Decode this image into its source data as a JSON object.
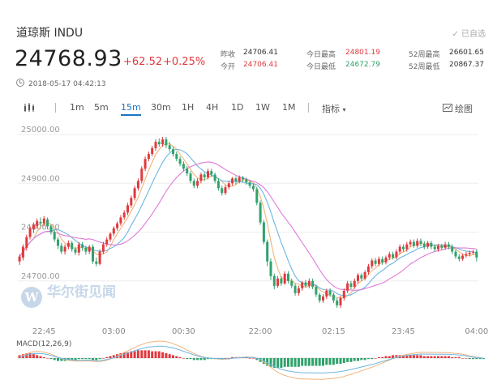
{
  "header": {
    "title": "道琼斯  INDU",
    "subscribed": "✓ 已自选",
    "price": "24768.93",
    "change": "+62.52",
    "change_pct": "+0.25%",
    "timestamp": "2018-05-17 04:42:13"
  },
  "quote": {
    "prev_close_label": "昨收",
    "prev_close": "24706.41",
    "open_label": "今开",
    "open": "24706.41",
    "high_label": "今日最高",
    "high": "24801.19",
    "low_label": "今日最低",
    "low": "24672.79",
    "w52_high_label": "52周最高",
    "w52_high": "26601.65",
    "w52_low_label": "52周最低",
    "w52_low": "20867.37"
  },
  "toolbar": {
    "intervals": [
      "1m",
      "5m",
      "15m",
      "30m",
      "1H",
      "4H",
      "1D",
      "1W",
      "1M"
    ],
    "active": "15m",
    "indicators_label": "指标",
    "draw_label": "绘图"
  },
  "watermark": {
    "logo_glyph": "W",
    "text": "华尔街见闻"
  },
  "macd": {
    "label": "MACD(12,26,9)"
  },
  "colors": {
    "up": "#e0393e",
    "down": "#2fa36b",
    "ma_short": "#f2b37a",
    "ma_mid": "#6cb6e3",
    "ma_long": "#e07ad8"
  },
  "chart_data": {
    "type": "candlestick",
    "ylim": [
      24625,
      25010
    ],
    "y_ticks": [
      25000,
      24900,
      24800,
      24700
    ],
    "y_tick_labels": [
      "25000.00",
      "24900.00",
      "24800.00",
      "24700.00"
    ],
    "x_labels": [
      "22:45",
      "03:00",
      "00:30",
      "22:00",
      "02:15",
      "23:45",
      "04:00"
    ],
    "x_label_index": [
      7,
      27,
      47,
      69,
      90,
      110,
      131
    ],
    "candles": [
      [
        24740,
        24750,
        24733,
        24755
      ],
      [
        24748,
        24770,
        24742,
        24775
      ],
      [
        24768,
        24790,
        24762,
        24795
      ],
      [
        24790,
        24808,
        24785,
        24812
      ],
      [
        24806,
        24815,
        24798,
        24820
      ],
      [
        24813,
        24823,
        24808,
        24828
      ],
      [
        24821,
        24818,
        24812,
        24830
      ],
      [
        24818,
        24828,
        24812,
        24833
      ],
      [
        24826,
        24812,
        24806,
        24830
      ],
      [
        24812,
        24800,
        24795,
        24815
      ],
      [
        24800,
        24785,
        24780,
        24805
      ],
      [
        24785,
        24772,
        24765,
        24790
      ],
      [
        24772,
        24760,
        24755,
        24778
      ],
      [
        24760,
        24770,
        24754,
        24775
      ],
      [
        24770,
        24778,
        24765,
        24783
      ],
      [
        24778,
        24765,
        24760,
        24782
      ],
      [
        24765,
        24758,
        24753,
        24770
      ],
      [
        24758,
        24775,
        24752,
        24780
      ],
      [
        24775,
        24768,
        24762,
        24780
      ],
      [
        24768,
        24760,
        24754,
        24772
      ],
      [
        24760,
        24770,
        24755,
        24774
      ],
      [
        24770,
        24740,
        24735,
        24775
      ],
      [
        24740,
        24735,
        24730,
        24748
      ],
      [
        24735,
        24760,
        24732,
        24765
      ],
      [
        24760,
        24775,
        24755,
        24780
      ],
      [
        24775,
        24785,
        24770,
        24790
      ],
      [
        24785,
        24797,
        24780,
        24800
      ],
      [
        24797,
        24808,
        24792,
        24812
      ],
      [
        24808,
        24818,
        24803,
        24822
      ],
      [
        24818,
        24830,
        24813,
        24835
      ],
      [
        24830,
        24840,
        24825,
        24845
      ],
      [
        24840,
        24855,
        24835,
        24860
      ],
      [
        24855,
        24870,
        24850,
        24875
      ],
      [
        24870,
        24890,
        24865,
        24895
      ],
      [
        24890,
        24905,
        24885,
        24910
      ],
      [
        24905,
        24930,
        24900,
        24935
      ],
      [
        24930,
        24950,
        24925,
        24955
      ],
      [
        24950,
        24960,
        24945,
        24965
      ],
      [
        24960,
        24972,
        24955,
        24977
      ],
      [
        24972,
        24985,
        24967,
        24990
      ],
      [
        24985,
        24980,
        24975,
        24992
      ],
      [
        24980,
        24990,
        24975,
        24995
      ],
      [
        24990,
        24978,
        24972,
        24995
      ],
      [
        24978,
        24970,
        24965,
        24985
      ],
      [
        24970,
        24960,
        24955,
        24975
      ],
      [
        24960,
        24950,
        24945,
        24965
      ],
      [
        24950,
        24940,
        24935,
        24955
      ],
      [
        24940,
        24930,
        24925,
        24945
      ],
      [
        24930,
        24920,
        24915,
        24935
      ],
      [
        24920,
        24905,
        24900,
        24925
      ],
      [
        24905,
        24895,
        24890,
        24910
      ],
      [
        24895,
        24905,
        24890,
        24910
      ],
      [
        24905,
        24918,
        24900,
        24922
      ],
      [
        24918,
        24912,
        24905,
        24922
      ],
      [
        24912,
        24925,
        24908,
        24930
      ],
      [
        24925,
        24918,
        24913,
        24930
      ],
      [
        24918,
        24905,
        24900,
        24922
      ],
      [
        24905,
        24890,
        24885,
        24910
      ],
      [
        24890,
        24880,
        24875,
        24895
      ],
      [
        24880,
        24892,
        24876,
        24897
      ],
      [
        24892,
        24900,
        24888,
        24905
      ],
      [
        24900,
        24910,
        24895,
        24913
      ],
      [
        24910,
        24904,
        24898,
        24914
      ],
      [
        24904,
        24912,
        24900,
        24916
      ],
      [
        24912,
        24908,
        24903,
        24915
      ],
      [
        24908,
        24902,
        24897,
        24912
      ],
      [
        24902,
        24895,
        24890,
        24906
      ],
      [
        24895,
        24888,
        24883,
        24900
      ],
      [
        24888,
        24860,
        24855,
        24892
      ],
      [
        24860,
        24820,
        24815,
        24865
      ],
      [
        24820,
        24780,
        24775,
        24825
      ],
      [
        24780,
        24740,
        24730,
        24785
      ],
      [
        24740,
        24710,
        24702,
        24746
      ],
      [
        24710,
        24690,
        24683,
        24715
      ],
      [
        24690,
        24705,
        24686,
        24710
      ],
      [
        24705,
        24695,
        24690,
        24710
      ],
      [
        24695,
        24715,
        24692,
        24720
      ],
      [
        24715,
        24700,
        24695,
        24720
      ],
      [
        24700,
        24690,
        24685,
        24705
      ],
      [
        24690,
        24675,
        24670,
        24695
      ],
      [
        24675,
        24685,
        24670,
        24690
      ],
      [
        24685,
        24697,
        24680,
        24700
      ],
      [
        24697,
        24690,
        24686,
        24702
      ],
      [
        24690,
        24700,
        24685,
        24705
      ],
      [
        24700,
        24688,
        24683,
        24705
      ],
      [
        24688,
        24672,
        24667,
        24692
      ],
      [
        24672,
        24660,
        24655,
        24676
      ],
      [
        24660,
        24668,
        24655,
        24673
      ],
      [
        24668,
        24680,
        24663,
        24684
      ],
      [
        24680,
        24672,
        24668,
        24685
      ],
      [
        24672,
        24660,
        24655,
        24676
      ],
      [
        24660,
        24650,
        24645,
        24665
      ],
      [
        24650,
        24665,
        24645,
        24670
      ],
      [
        24665,
        24680,
        24660,
        24685
      ],
      [
        24680,
        24695,
        24675,
        24700
      ],
      [
        24695,
        24688,
        24683,
        24700
      ],
      [
        24688,
        24700,
        24684,
        24705
      ],
      [
        24700,
        24712,
        24695,
        24716
      ],
      [
        24712,
        24705,
        24700,
        24716
      ],
      [
        24705,
        24718,
        24702,
        24722
      ],
      [
        24718,
        24730,
        24713,
        24735
      ],
      [
        24730,
        24742,
        24725,
        24746
      ],
      [
        24742,
        24735,
        24730,
        24747
      ],
      [
        24735,
        24745,
        24730,
        24750
      ],
      [
        24745,
        24738,
        24733,
        24750
      ],
      [
        24738,
        24748,
        24734,
        24752
      ],
      [
        24748,
        24755,
        24743,
        24760
      ],
      [
        24755,
        24748,
        24744,
        24760
      ],
      [
        24748,
        24760,
        24744,
        24765
      ],
      [
        24760,
        24770,
        24755,
        24775
      ],
      [
        24770,
        24765,
        24760,
        24775
      ],
      [
        24765,
        24775,
        24760,
        24780
      ],
      [
        24775,
        24780,
        24770,
        24785
      ],
      [
        24780,
        24772,
        24768,
        24785
      ],
      [
        24772,
        24782,
        24768,
        24787
      ],
      [
        24782,
        24776,
        24771,
        24787
      ],
      [
        24776,
        24770,
        24765,
        24781
      ],
      [
        24770,
        24778,
        24766,
        24782
      ],
      [
        24778,
        24770,
        24765,
        24782
      ],
      [
        24770,
        24765,
        24760,
        24775
      ],
      [
        24765,
        24772,
        24760,
        24776
      ],
      [
        24772,
        24768,
        24763,
        24776
      ],
      [
        24768,
        24775,
        24764,
        24780
      ],
      [
        24775,
        24770,
        24765,
        24780
      ],
      [
        24770,
        24760,
        24755,
        24775
      ],
      [
        24760,
        24750,
        24745,
        24765
      ],
      [
        24750,
        24745,
        24740,
        24755
      ],
      [
        24745,
        24752,
        24741,
        24756
      ],
      [
        24752,
        24755,
        24748,
        24760
      ],
      [
        24755,
        24758,
        24750,
        24762
      ],
      [
        24758,
        24760,
        24754,
        24764
      ],
      [
        24760,
        24748,
        24740,
        24765
      ]
    ],
    "candle_fields": [
      "open",
      "close",
      "low",
      "high"
    ],
    "ma_periods": [
      5,
      10,
      20
    ],
    "macd_hist": [
      3,
      4,
      5,
      5,
      4,
      3,
      2,
      1,
      0,
      -1,
      -2,
      -3,
      -3,
      -3,
      -2,
      -2,
      -2,
      -1,
      -1,
      -1,
      -1,
      -2,
      -2,
      -1,
      0,
      1,
      2,
      3,
      4,
      5,
      6,
      6,
      7,
      7,
      8,
      8,
      8,
      8,
      7,
      7,
      7,
      6,
      5,
      4,
      3,
      2,
      1,
      0,
      -1,
      -1,
      -2,
      -2,
      -2,
      -2,
      -1,
      -1,
      -1,
      -1,
      -1,
      0,
      0,
      1,
      1,
      1,
      1,
      1,
      0,
      0,
      -2,
      -4,
      -6,
      -8,
      -9,
      -10,
      -10,
      -10,
      -9,
      -9,
      -9,
      -9,
      -9,
      -8,
      -8,
      -8,
      -8,
      -8,
      -8,
      -8,
      -7,
      -7,
      -7,
      -6,
      -6,
      -5,
      -4,
      -4,
      -3,
      -3,
      -2,
      -2,
      -1,
      -1,
      0,
      1,
      1,
      2,
      2,
      3,
      3,
      3,
      3,
      3,
      3,
      3,
      3,
      3,
      2,
      2,
      2,
      2,
      2,
      2,
      2,
      2,
      1,
      1,
      1,
      0,
      0,
      -1,
      -1,
      -1,
      -1,
      -1
    ]
  }
}
